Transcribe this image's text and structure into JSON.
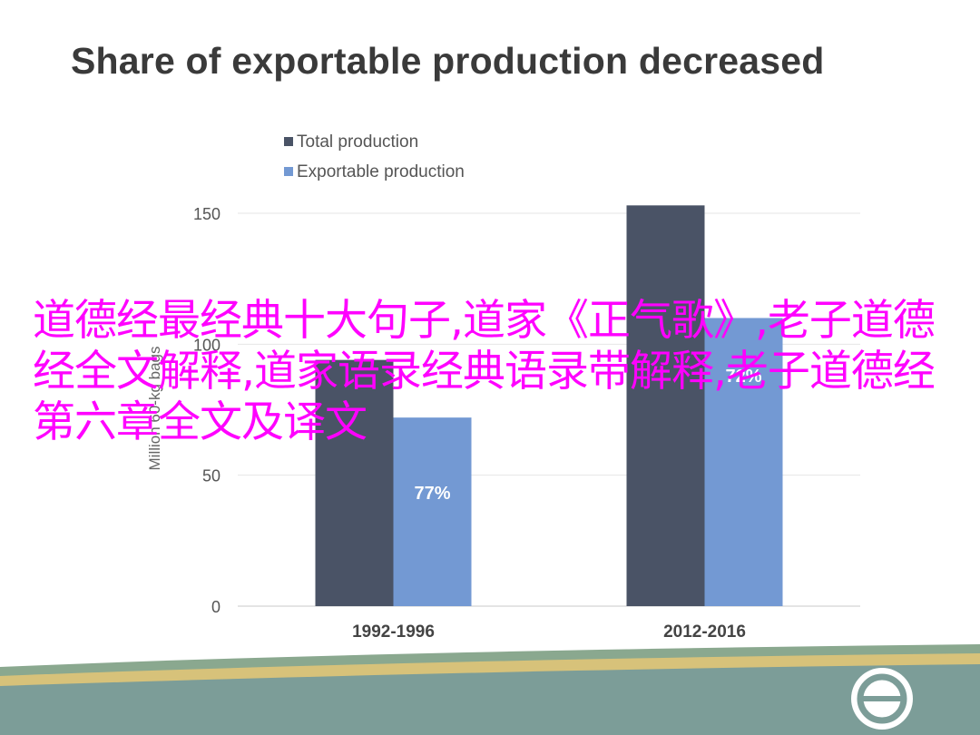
{
  "slide": {
    "title": "Share of exportable production decreased"
  },
  "overlay": {
    "text": "道德经最经典十大句子,道家《正气歌》,老子道德经全文解释,道家语录经典语录带解释,老子道德经第六章全文及译文"
  },
  "chart_data": {
    "type": "bar",
    "categories": [
      "1992-1996",
      "2012-2016"
    ],
    "series": [
      {
        "name": "Total production",
        "values": [
          94,
          153
        ],
        "color": "#4a5366"
      },
      {
        "name": "Exportable production",
        "values": [
          72,
          110
        ],
        "color": "#7399d3"
      }
    ],
    "data_labels": [
      "77%",
      "72%"
    ],
    "ylabel": "Million 60-kg bags",
    "yticks": [
      0,
      50,
      100,
      150
    ],
    "ylim": [
      0,
      150
    ],
    "legend": "top-left",
    "grid": true
  },
  "colors": {
    "title": "#3a3a3a",
    "overlay": "#ff00ff",
    "footer_green": "#8aa88f",
    "footer_gold": "#d7c27a",
    "footer_teal": "#7c9d98"
  },
  "footer": {
    "logo_icon": "theta-circle-icon"
  }
}
